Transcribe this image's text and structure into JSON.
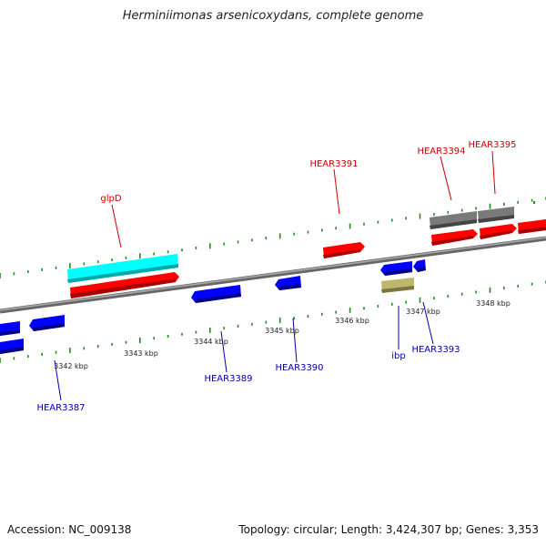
{
  "title": "Herminiimonas arsenicoxydans, complete genome",
  "footer": {
    "accession": "Accession: NC_009138",
    "summary": "Topology: circular; Length: 3,424,307 bp; Genes: 3,353"
  },
  "colors": {
    "forward_gene": "#ff0000",
    "reverse_gene": "#0000ff",
    "rna": "#00ffff",
    "pseudo": "#777777",
    "other": "#b8b070",
    "forward_label": "#cc0000",
    "reverse_label": "#0000aa",
    "tick": "#228b22"
  },
  "scale": {
    "ticks": [
      "3342 kbp",
      "3343 kbp",
      "3344 kbp",
      "3345 kbp",
      "3346 kbp",
      "3347 kbp",
      "3348 kbp"
    ]
  },
  "labels": {
    "glpD": "glpD",
    "HEAR3391": "HEAR3391",
    "HEAR3394": "HEAR3394",
    "HEAR3395": "HEAR3395",
    "HEAR3387": "HEAR3387",
    "HEAR3389": "HEAR3389",
    "HEAR3390": "HEAR3390",
    "ibp": "ibp",
    "HEAR3393": "HEAR3393"
  }
}
